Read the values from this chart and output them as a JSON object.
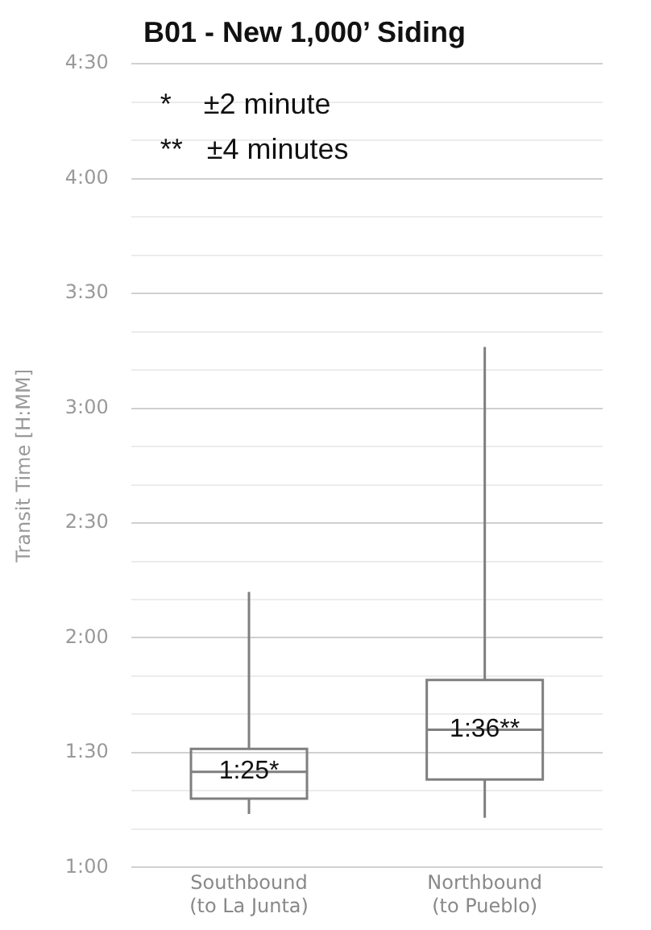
{
  "chart_data": {
    "type": "box",
    "title": "B01 - New 1,000’ Siding",
    "ylabel": "Transit Time [H:MM]",
    "categories": [
      "Southbound\n(to La Junta)",
      "Northbound\n(to Pueblo)"
    ],
    "boxes": [
      {
        "low": 74,
        "q1": 78,
        "median": 85,
        "q3": 91,
        "high": 132
      },
      {
        "low": 73,
        "q1": 83,
        "median": 96,
        "q3": 109,
        "high": 196
      }
    ],
    "value_labels": [
      "1:25*",
      "1:36**"
    ],
    "color": "#7f7f7f",
    "ylim": [
      60,
      270
    ],
    "yticks": [
      {
        "value": 60,
        "label": "1:00"
      },
      {
        "value": 70,
        "label": null
      },
      {
        "value": 80,
        "label": null
      },
      {
        "value": 90,
        "label": "1:30"
      },
      {
        "value": 100,
        "label": null
      },
      {
        "value": 110,
        "label": null
      },
      {
        "value": 120,
        "label": "2:00"
      },
      {
        "value": 130,
        "label": null
      },
      {
        "value": 140,
        "label": null
      },
      {
        "value": 150,
        "label": "2:30"
      },
      {
        "value": 160,
        "label": null
      },
      {
        "value": 170,
        "label": null
      },
      {
        "value": 180,
        "label": "3:00"
      },
      {
        "value": 190,
        "label": null
      },
      {
        "value": 200,
        "label": null
      },
      {
        "value": 210,
        "label": "3:30"
      },
      {
        "value": 220,
        "label": null
      },
      {
        "value": 230,
        "label": null
      },
      {
        "value": 240,
        "label": "4:00"
      },
      {
        "value": 250,
        "label": null
      },
      {
        "value": 260,
        "label": null
      },
      {
        "value": 270,
        "label": "4:30"
      }
    ],
    "grid": "y",
    "annotations": [
      "*    ±2 minute",
      "**   ±4 minutes"
    ]
  }
}
